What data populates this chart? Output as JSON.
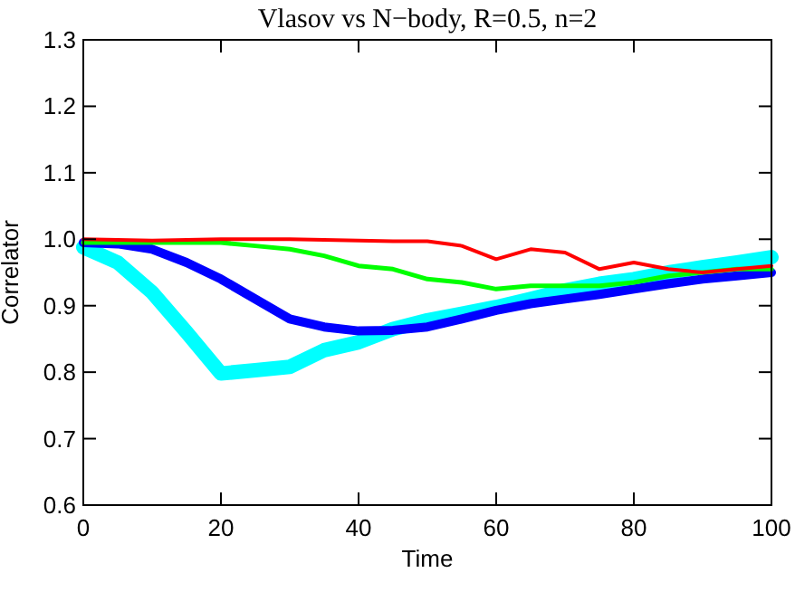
{
  "chart_data": {
    "type": "line",
    "title": "Vlasov vs N−body, R=0.5, n=2",
    "xlabel": "Time",
    "ylabel": "Correlator",
    "xlim": [
      0,
      100
    ],
    "xticks": [
      0,
      20,
      40,
      60,
      80,
      100
    ],
    "ylim": [
      0.6,
      1.3
    ],
    "yticks": [
      {
        "value": 0.6,
        "label": "0.6"
      },
      {
        "value": 0.7,
        "label": "0.7"
      },
      {
        "value": 0.8,
        "label": "0.8"
      },
      {
        "value": 0.9,
        "label": "0.9"
      },
      {
        "value": 1.0,
        "label": "1.0"
      },
      {
        "value": 1.1,
        "label": "1.1"
      },
      {
        "value": 1.2,
        "label": "1.2"
      },
      {
        "value": 1.3,
        "label": "1.3"
      }
    ],
    "grid": false,
    "x": [
      0,
      5,
      10,
      15,
      20,
      25,
      30,
      35,
      40,
      45,
      50,
      55,
      60,
      65,
      70,
      75,
      80,
      85,
      90,
      95,
      100
    ],
    "series": [
      {
        "color": "#00ffff",
        "values": [
          0.988,
          0.965,
          0.92,
          0.86,
          0.798,
          0.803,
          0.808,
          0.833,
          0.845,
          0.865,
          0.878,
          0.888,
          0.898,
          0.91,
          0.923,
          0.933,
          0.94,
          0.95,
          0.958,
          0.965,
          0.973
        ]
      },
      {
        "color": "#0000ff",
        "values": [
          0.995,
          0.993,
          0.985,
          0.965,
          0.94,
          0.91,
          0.88,
          0.868,
          0.862,
          0.863,
          0.868,
          0.88,
          0.893,
          0.903,
          0.91,
          0.917,
          0.925,
          0.933,
          0.94,
          0.945,
          0.95
        ]
      },
      {
        "color": "#00ff00",
        "values": [
          0.995,
          0.995,
          0.995,
          0.995,
          0.995,
          0.99,
          0.985,
          0.975,
          0.96,
          0.955,
          0.94,
          0.935,
          0.925,
          0.93,
          0.93,
          0.93,
          0.935,
          0.945,
          0.95,
          0.955,
          0.955
        ]
      },
      {
        "color": "#ff0000",
        "values": [
          1.0,
          0.999,
          0.998,
          0.999,
          1.0,
          1.0,
          1.0,
          0.999,
          0.998,
          0.997,
          0.997,
          0.99,
          0.97,
          0.985,
          0.98,
          0.955,
          0.965,
          0.955,
          0.95,
          0.955,
          0.96
        ]
      }
    ]
  }
}
